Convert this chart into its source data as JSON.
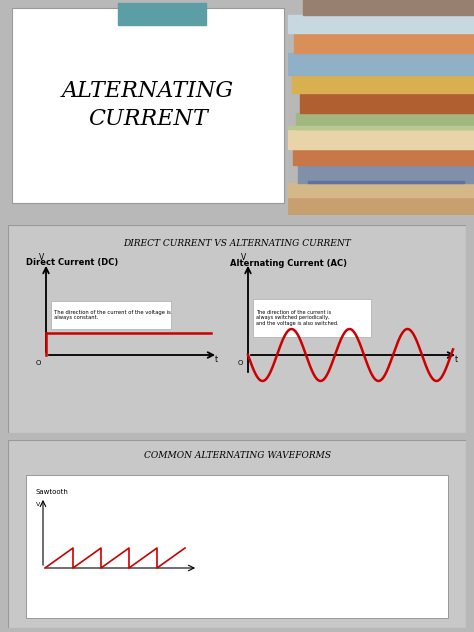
{
  "slide1_title": "ALTERNATING\nCURRENT",
  "slide1_accent_color": "#5b9ea6",
  "slide2_title": "DIRECT CURRENT VS ALTERNATING CURRENT",
  "slide2_dc_label": "Direct Current (DC)",
  "slide2_ac_label": "Alternating Current (AC)",
  "slide2_dc_text": "The direction of the current of the voltage is\nalways constant.",
  "slide2_ac_text": "The direction of the current is\nalways switched periodically,\nand the voltage is also switched.",
  "slide3_title": "COMMON ALTERNATING WAVEFORMS",
  "slide3_sawtooth_label": "Sawtooth",
  "wave_color": "#cc0000",
  "outer_bg": "#b8b8b8",
  "slide_bg": "#c8c8c8",
  "white": "#ffffff",
  "black": "#000000",
  "border_color": "#999999"
}
